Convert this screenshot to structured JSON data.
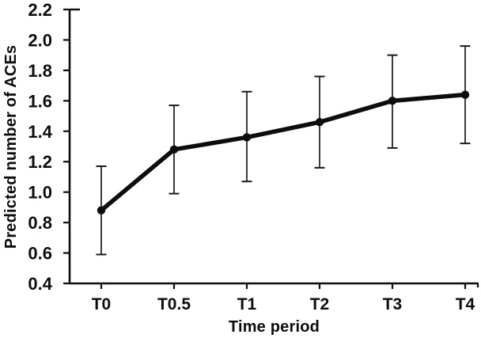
{
  "figure": {
    "background": "#ffffff",
    "ink_color": "#0d0d0d",
    "errorbar_color": "#1a1a1a"
  },
  "chart_data": {
    "type": "line",
    "title": "",
    "xlabel": "Time period",
    "ylabel": "Predicted number of ACEs",
    "categories": [
      "T0",
      "T0.5",
      "T1",
      "T2",
      "T3",
      "T4"
    ],
    "series": [
      {
        "name": "Predicted number of ACEs",
        "values": [
          0.88,
          1.28,
          1.36,
          1.46,
          1.6,
          1.64
        ],
        "ci_lower": [
          0.59,
          0.99,
          1.07,
          1.16,
          1.29,
          1.32
        ],
        "ci_upper": [
          1.17,
          1.57,
          1.66,
          1.76,
          1.9,
          1.96
        ]
      }
    ],
    "ylim": [
      0.4,
      2.2
    ],
    "y_tick_step": 0.2,
    "y_tick_labels": [
      "0.4",
      "0.6",
      "0.8",
      "1.0",
      "1.2",
      "1.4",
      "1.6",
      "1.8",
      "2.0",
      "2.2"
    ],
    "grid": false,
    "legend": "none",
    "marker": "circle",
    "error_bars": true
  }
}
